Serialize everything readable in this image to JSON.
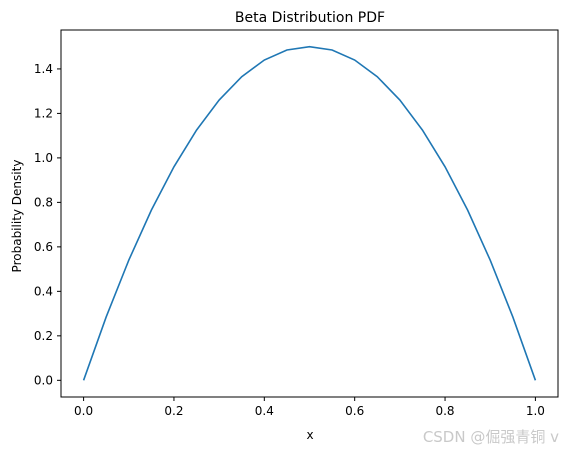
{
  "chart_data": {
    "type": "line",
    "title": "Beta Distribution PDF",
    "xlabel": "x",
    "ylabel": "Probability Density",
    "xlim": [
      -0.05,
      1.05
    ],
    "ylim": [
      -0.075,
      1.575
    ],
    "x_ticks": [
      0.0,
      0.2,
      0.4,
      0.6,
      0.8,
      1.0
    ],
    "x_tick_labels": [
      "0.0",
      "0.2",
      "0.4",
      "0.6",
      "0.8",
      "1.0"
    ],
    "y_ticks": [
      0.0,
      0.2,
      0.4,
      0.6,
      0.8,
      1.0,
      1.2,
      1.4
    ],
    "y_tick_labels": [
      "0.0",
      "0.2",
      "0.4",
      "0.6",
      "0.8",
      "1.0",
      "1.2",
      "1.4"
    ],
    "grid": false,
    "series": [
      {
        "color": "#1f77b4",
        "x": [
          0.0,
          0.05,
          0.1,
          0.15,
          0.2,
          0.25,
          0.3,
          0.35,
          0.4,
          0.45,
          0.5,
          0.55,
          0.6,
          0.65,
          0.7,
          0.75,
          0.8,
          0.85,
          0.9,
          0.95,
          1.0
        ],
        "y": [
          0.0,
          0.285,
          0.54,
          0.765,
          0.96,
          1.125,
          1.26,
          1.365,
          1.44,
          1.485,
          1.5,
          1.485,
          1.44,
          1.365,
          1.26,
          1.125,
          0.96,
          0.765,
          0.54,
          0.285,
          0.0
        ]
      }
    ]
  },
  "watermark": "CSDN @倔强青铜 v"
}
